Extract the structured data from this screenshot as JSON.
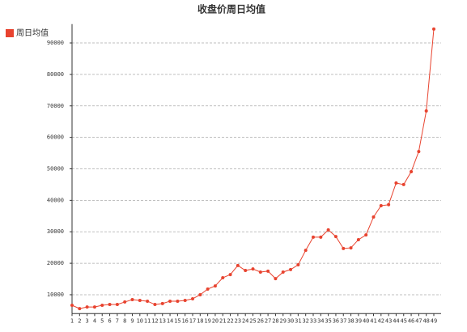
{
  "chart_data": {
    "type": "line",
    "title": "收盘价周日均值",
    "categories": [
      "1",
      "2",
      "3",
      "4",
      "5",
      "6",
      "7",
      "8",
      "9",
      "10",
      "11",
      "12",
      "13",
      "14",
      "15",
      "16",
      "17",
      "18",
      "19",
      "20",
      "21",
      "22",
      "23",
      "24",
      "25",
      "26",
      "27",
      "28",
      "29",
      "30",
      "31",
      "32",
      "33",
      "34",
      "35",
      "36",
      "37",
      "38",
      "39",
      "40",
      "41",
      "42",
      "43",
      "44",
      "45",
      "46",
      "47",
      "48",
      "49"
    ],
    "series": [
      {
        "name": "周日均值",
        "color": "#e8432f",
        "values": [
          6650,
          5600,
          6100,
          6100,
          6650,
          6900,
          6900,
          7700,
          8450,
          8200,
          7950,
          6900,
          7200,
          7950,
          7950,
          8200,
          8700,
          10000,
          11800,
          12800,
          15400,
          16400,
          19300,
          17700,
          18200,
          17200,
          17500,
          15100,
          17200,
          18000,
          19500,
          24100,
          28300,
          28300,
          30600,
          28500,
          24700,
          24900,
          27500,
          29000,
          34700,
          38300,
          38600,
          45500,
          45000,
          49100,
          55500,
          68400,
          94400
        ]
      }
    ],
    "ylim": [
      4000,
      96000
    ],
    "yticks": [
      10000,
      20000,
      30000,
      40000,
      50000,
      60000,
      70000,
      80000,
      90000
    ],
    "grid": true,
    "legend": "top-left"
  }
}
